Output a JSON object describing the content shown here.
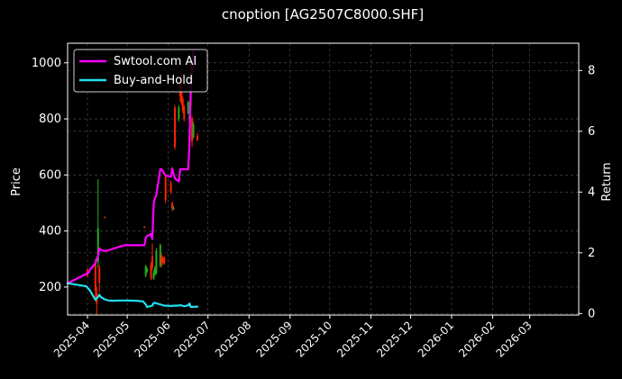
{
  "chart_data": {
    "type": "candlestick+line",
    "title": "cnoption [AG2507C8000.SHF]",
    "ylabel": "Price",
    "y2label": "Return",
    "ylim": [
      100,
      1070
    ],
    "y2lim": [
      -0.05,
      8.9
    ],
    "yticks": [
      200,
      400,
      600,
      800,
      1000
    ],
    "y2ticks": [
      0,
      2,
      4,
      6,
      8
    ],
    "x_range": [
      "2025-03-17",
      "2026-04-07"
    ],
    "xticks": [
      "2025-04",
      "2025-05",
      "2025-06",
      "2025-07",
      "2025-08",
      "2025-09",
      "2025-10",
      "2025-11",
      "2025-12",
      "2026-01",
      "2026-02",
      "2026-03"
    ],
    "grid": true,
    "legend_position": "top-left",
    "colors": {
      "up": "#22aa22",
      "down": "#ff2200",
      "strategy": "#ff00ff",
      "benchmark": "#22e0f0",
      "grid": "#555555"
    },
    "series": [
      {
        "name": "Swtool.com AI",
        "axis": "right",
        "points": [
          [
            "2025-03-17",
            1.0
          ],
          [
            "2025-03-24",
            1.15
          ],
          [
            "2025-03-31",
            1.3
          ],
          [
            "2025-04-02",
            1.35
          ],
          [
            "2025-04-03",
            1.45
          ],
          [
            "2025-04-07",
            1.65
          ],
          [
            "2025-04-08",
            1.8
          ],
          [
            "2025-04-09",
            1.9
          ],
          [
            "2025-04-10",
            2.15
          ],
          [
            "2025-04-11",
            2.1
          ],
          [
            "2025-04-14",
            2.05
          ],
          [
            "2025-04-18",
            2.1
          ],
          [
            "2025-04-25",
            2.2
          ],
          [
            "2025-04-29",
            2.25
          ],
          [
            "2025-05-06",
            2.25
          ],
          [
            "2025-05-13",
            2.25
          ],
          [
            "2025-05-14",
            2.25
          ],
          [
            "2025-05-15",
            2.5
          ],
          [
            "2025-05-16",
            2.55
          ],
          [
            "2025-05-19",
            2.62
          ],
          [
            "2025-05-20",
            2.45
          ],
          [
            "2025-05-21",
            3.6
          ],
          [
            "2025-05-22",
            3.8
          ],
          [
            "2025-05-23",
            3.9
          ],
          [
            "2025-05-26",
            4.75
          ],
          [
            "2025-05-27",
            4.75
          ],
          [
            "2025-05-28",
            4.68
          ],
          [
            "2025-05-29",
            4.6
          ],
          [
            "2025-05-30",
            4.55
          ],
          [
            "2025-06-03",
            4.5
          ],
          [
            "2025-06-04",
            4.78
          ],
          [
            "2025-06-05",
            4.6
          ],
          [
            "2025-06-06",
            4.45
          ],
          [
            "2025-06-09",
            4.35
          ],
          [
            "2025-06-10",
            4.75
          ],
          [
            "2025-06-11",
            4.75
          ],
          [
            "2025-06-12",
            4.75
          ],
          [
            "2025-06-13",
            4.75
          ],
          [
            "2025-06-16",
            4.75
          ],
          [
            "2025-06-17",
            5.5
          ],
          [
            "2025-06-18",
            7.4
          ],
          [
            "2025-06-19",
            8.0
          ],
          [
            "2025-06-20",
            8.65
          ]
        ]
      },
      {
        "name": "Buy-and-Hold",
        "axis": "right",
        "points": [
          [
            "2025-03-17",
            1.0
          ],
          [
            "2025-03-24",
            0.95
          ],
          [
            "2025-03-31",
            0.9
          ],
          [
            "2025-04-03",
            0.75
          ],
          [
            "2025-04-07",
            0.45
          ],
          [
            "2025-04-08",
            0.5
          ],
          [
            "2025-04-09",
            0.55
          ],
          [
            "2025-04-10",
            0.62
          ],
          [
            "2025-04-11",
            0.55
          ],
          [
            "2025-04-14",
            0.47
          ],
          [
            "2025-04-17",
            0.43
          ],
          [
            "2025-04-21",
            0.42
          ],
          [
            "2025-04-25",
            0.43
          ],
          [
            "2025-05-01",
            0.43
          ],
          [
            "2025-05-08",
            0.42
          ],
          [
            "2025-05-13",
            0.4
          ],
          [
            "2025-05-15",
            0.3
          ],
          [
            "2025-05-16",
            0.22
          ],
          [
            "2025-05-19",
            0.25
          ],
          [
            "2025-05-20",
            0.26
          ],
          [
            "2025-05-21",
            0.35
          ],
          [
            "2025-05-22",
            0.35
          ],
          [
            "2025-05-26",
            0.3
          ],
          [
            "2025-05-29",
            0.26
          ],
          [
            "2025-06-03",
            0.25
          ],
          [
            "2025-06-06",
            0.26
          ],
          [
            "2025-06-09",
            0.26
          ],
          [
            "2025-06-10",
            0.28
          ],
          [
            "2025-06-13",
            0.24
          ],
          [
            "2025-06-16",
            0.27
          ],
          [
            "2025-06-17",
            0.33
          ],
          [
            "2025-06-18",
            0.22
          ],
          [
            "2025-06-20",
            0.22
          ],
          [
            "2025-06-23",
            0.23
          ]
        ]
      }
    ],
    "candles": [
      {
        "date": "2025-04-01",
        "open": 262,
        "close": 240,
        "high": 268,
        "low": 236
      },
      {
        "date": "2025-04-07",
        "open": 290,
        "close": 185,
        "high": 300,
        "low": 150
      },
      {
        "date": "2025-04-08",
        "open": 180,
        "close": 140,
        "high": 200,
        "low": 100
      },
      {
        "date": "2025-04-09",
        "open": 290,
        "close": 410,
        "high": 585,
        "low": 270
      },
      {
        "date": "2025-04-10",
        "open": 270,
        "close": 215,
        "high": 280,
        "low": 180
      },
      {
        "date": "2025-04-14",
        "open": 450,
        "close": 448,
        "high": 452,
        "low": 445
      },
      {
        "date": "2025-05-14",
        "open": 415,
        "close": 412,
        "high": 418,
        "low": 410
      },
      {
        "date": "2025-05-15",
        "open": 240,
        "close": 275,
        "high": 280,
        "low": 235
      },
      {
        "date": "2025-05-16",
        "open": 255,
        "close": 265,
        "high": 270,
        "low": 250
      },
      {
        "date": "2025-05-19",
        "open": 280,
        "close": 230,
        "high": 290,
        "low": 225
      },
      {
        "date": "2025-05-20",
        "open": 310,
        "close": 270,
        "high": 355,
        "low": 260
      },
      {
        "date": "2025-05-21",
        "open": 230,
        "close": 250,
        "high": 260,
        "low": 225
      },
      {
        "date": "2025-05-22",
        "open": 245,
        "close": 270,
        "high": 275,
        "low": 240
      },
      {
        "date": "2025-05-23",
        "open": 250,
        "close": 330,
        "high": 340,
        "low": 245
      },
      {
        "date": "2025-05-26",
        "open": 275,
        "close": 350,
        "high": 355,
        "low": 270
      },
      {
        "date": "2025-05-27",
        "open": 310,
        "close": 285,
        "high": 320,
        "low": 270
      },
      {
        "date": "2025-05-28",
        "open": 300,
        "close": 290,
        "high": 310,
        "low": 280
      },
      {
        "date": "2025-05-29",
        "open": 305,
        "close": 285,
        "high": 310,
        "low": 280
      },
      {
        "date": "2025-05-30",
        "open": 595,
        "close": 510,
        "high": 600,
        "low": 500
      },
      {
        "date": "2025-06-03",
        "open": 570,
        "close": 540,
        "high": 580,
        "low": 530
      },
      {
        "date": "2025-06-04",
        "open": 500,
        "close": 480,
        "high": 505,
        "low": 470
      },
      {
        "date": "2025-06-05",
        "open": 480,
        "close": 480,
        "high": 490,
        "low": 475
      },
      {
        "date": "2025-06-06",
        "open": 840,
        "close": 700,
        "high": 850,
        "low": 690
      },
      {
        "date": "2025-06-09",
        "open": 800,
        "close": 840,
        "high": 850,
        "low": 790
      },
      {
        "date": "2025-06-10",
        "open": 950,
        "close": 880,
        "high": 960,
        "low": 860
      },
      {
        "date": "2025-06-11",
        "open": 920,
        "close": 860,
        "high": 980,
        "low": 850
      },
      {
        "date": "2025-06-12",
        "open": 870,
        "close": 830,
        "high": 880,
        "low": 820
      },
      {
        "date": "2025-06-13",
        "open": 845,
        "close": 800,
        "high": 850,
        "low": 790
      },
      {
        "date": "2025-06-16",
        "open": 820,
        "close": 860,
        "high": 865,
        "low": 815
      },
      {
        "date": "2025-06-17",
        "open": 800,
        "close": 810,
        "high": 860,
        "low": 795
      },
      {
        "date": "2025-06-18",
        "open": 960,
        "close": 850,
        "high": 1000,
        "low": 800
      },
      {
        "date": "2025-06-19",
        "open": 800,
        "close": 720,
        "high": 810,
        "low": 700
      },
      {
        "date": "2025-06-20",
        "open": 735,
        "close": 780,
        "high": 790,
        "low": 730
      },
      {
        "date": "2025-06-23",
        "open": 740,
        "close": 725,
        "high": 750,
        "low": 720
      }
    ]
  }
}
